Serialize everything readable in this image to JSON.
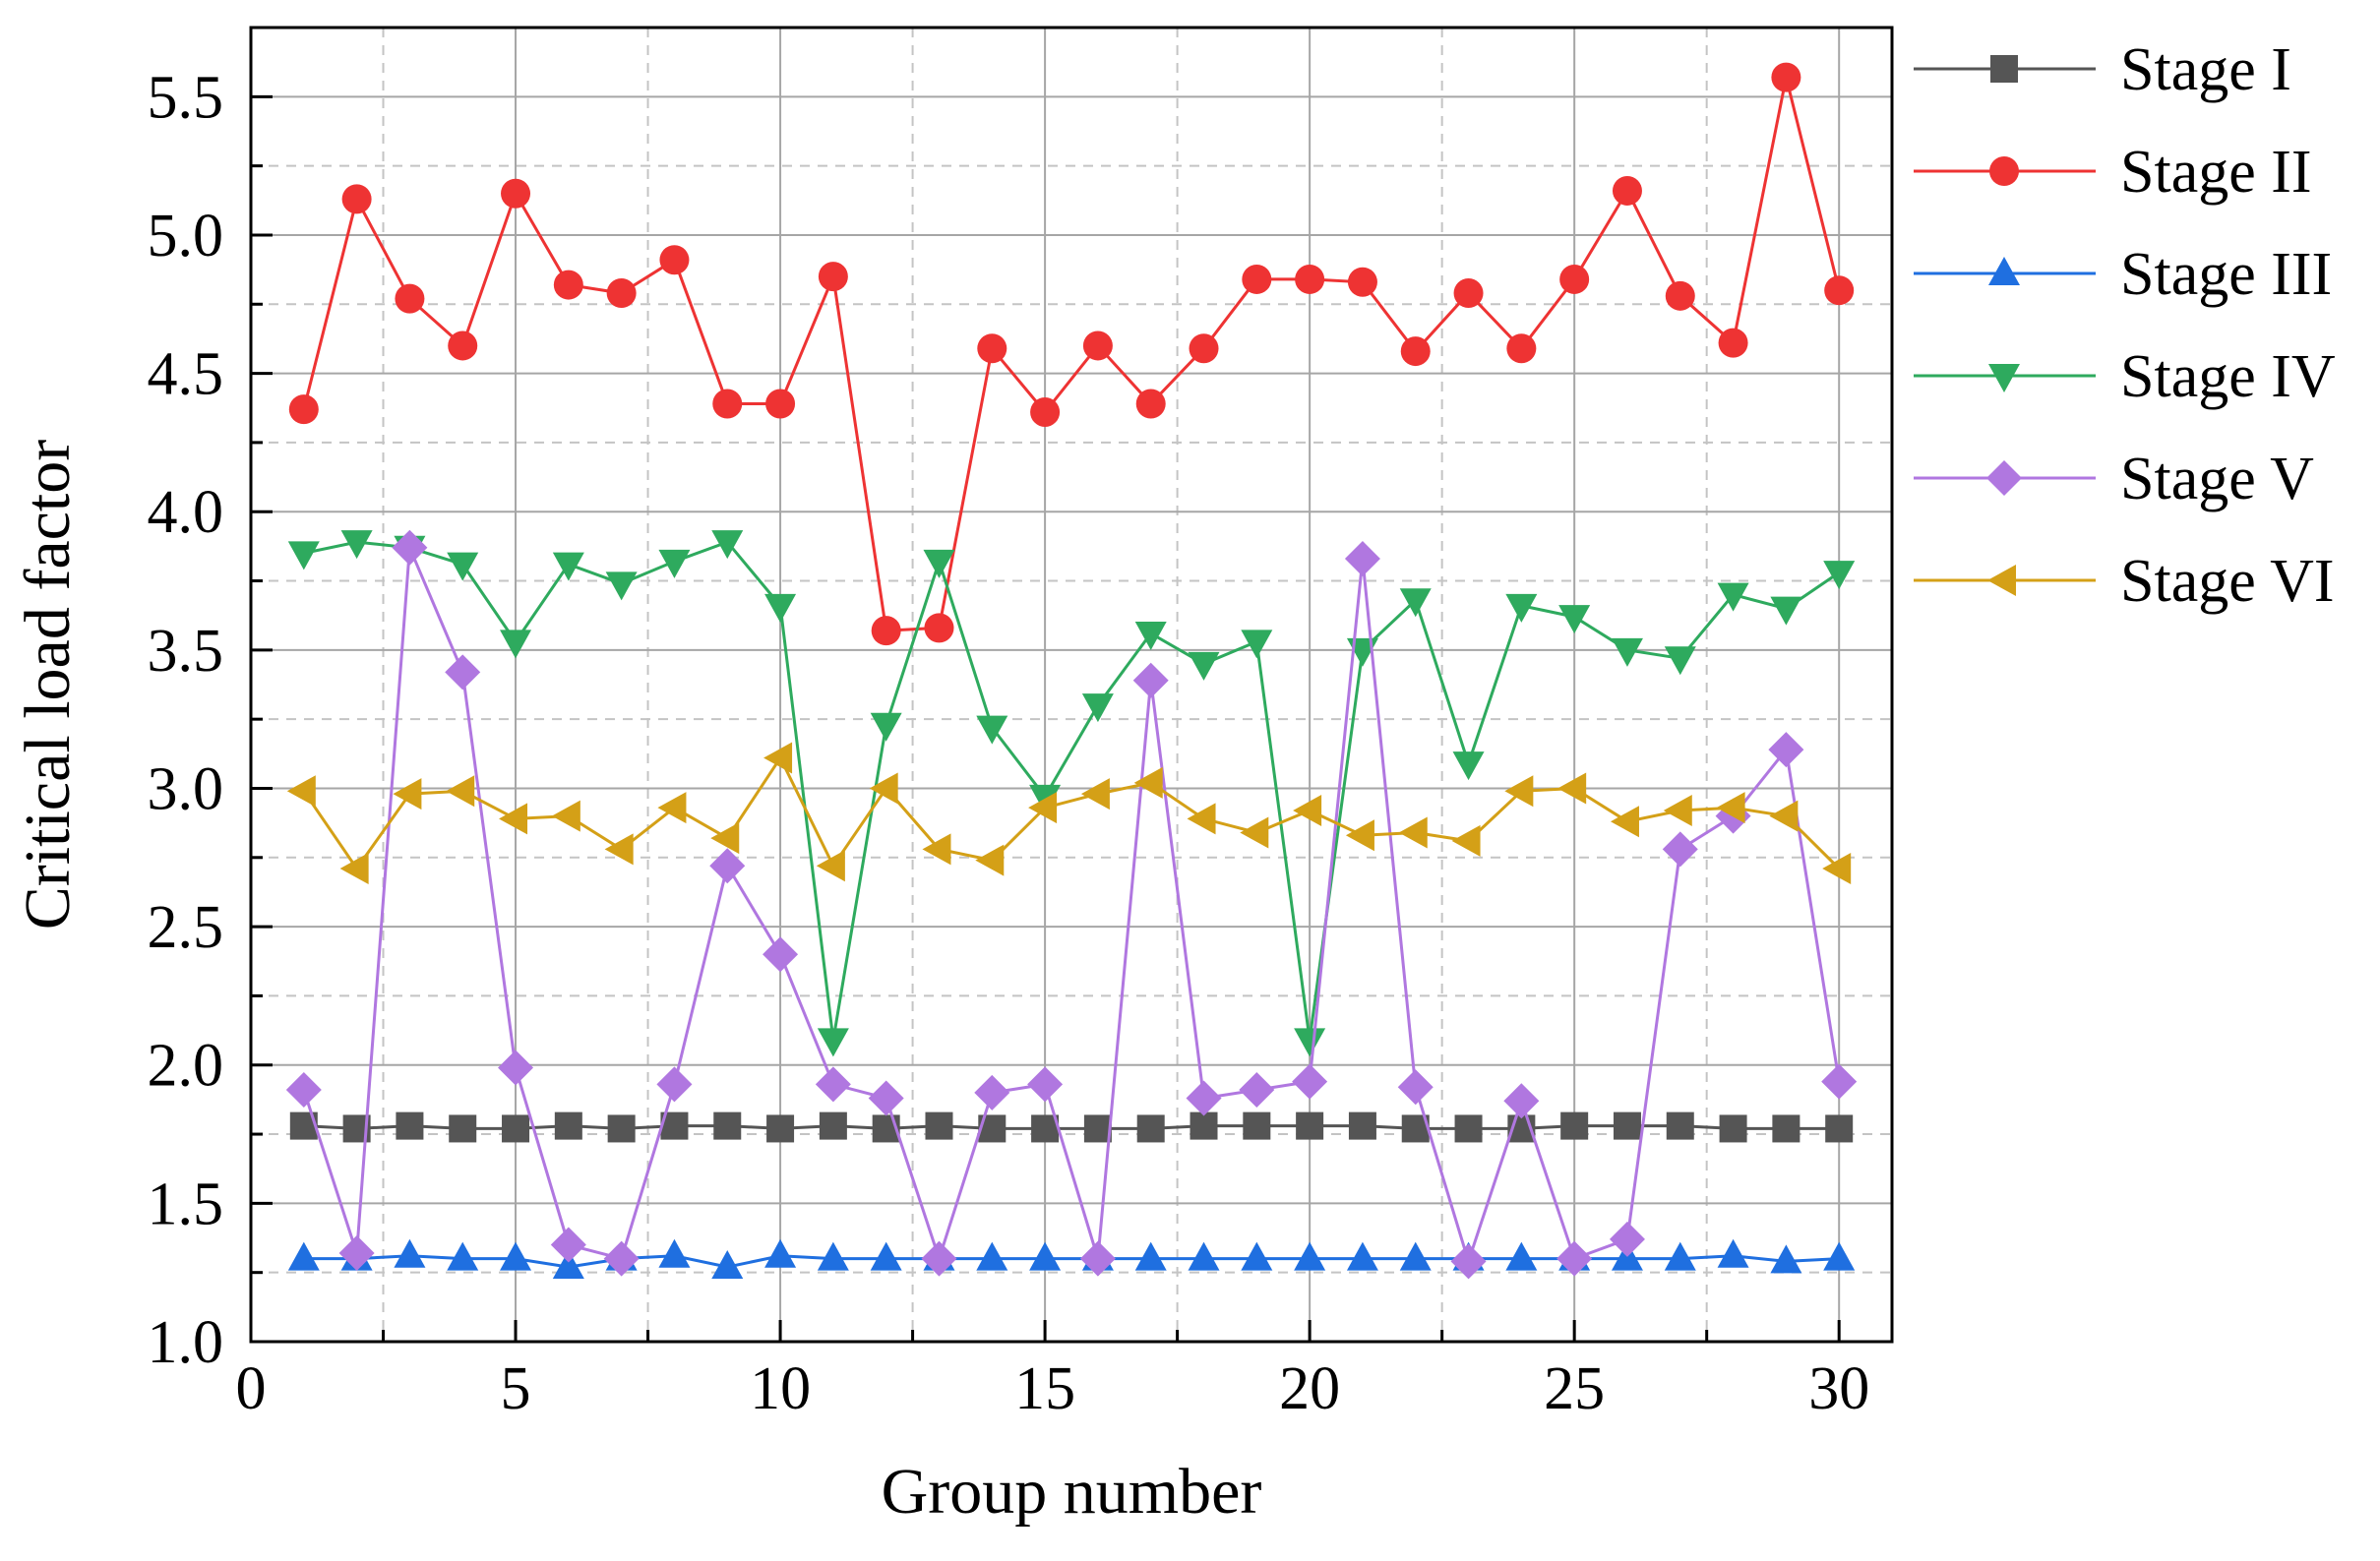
{
  "chart_data": {
    "type": "line",
    "xlabel": "Group number",
    "ylabel": "Critical load factor",
    "xlim": [
      0,
      31
    ],
    "ylim": [
      1.0,
      5.75
    ],
    "xticks": [
      0,
      5,
      10,
      15,
      20,
      25,
      30
    ],
    "yticks": [
      1.0,
      1.5,
      2.0,
      2.5,
      3.0,
      3.5,
      4.0,
      4.5,
      5.0,
      5.5
    ],
    "xtick_labels": [
      "0",
      "5",
      "10",
      "15",
      "20",
      "25",
      "30"
    ],
    "ytick_labels": [
      "1.0",
      "1.5",
      "2.0",
      "2.5",
      "3.0",
      "3.5",
      "4.0",
      "4.5",
      "5.0",
      "5.5"
    ],
    "grid": true,
    "legend_position": "right",
    "x": [
      1,
      2,
      3,
      4,
      5,
      6,
      7,
      8,
      9,
      10,
      11,
      12,
      13,
      14,
      15,
      16,
      17,
      18,
      19,
      20,
      21,
      22,
      23,
      24,
      25,
      26,
      27,
      28,
      29,
      30
    ],
    "series": [
      {
        "name": "Stage I",
        "marker": "square",
        "color": "#555555",
        "values": [
          1.78,
          1.77,
          1.78,
          1.77,
          1.77,
          1.78,
          1.77,
          1.78,
          1.78,
          1.77,
          1.78,
          1.77,
          1.78,
          1.77,
          1.77,
          1.77,
          1.77,
          1.78,
          1.78,
          1.78,
          1.78,
          1.77,
          1.77,
          1.77,
          1.78,
          1.78,
          1.78,
          1.77,
          1.77,
          1.77
        ]
      },
      {
        "name": "Stage II",
        "marker": "circle",
        "color": "#ee3333",
        "values": [
          4.37,
          5.13,
          4.77,
          4.6,
          5.15,
          4.82,
          4.79,
          4.91,
          4.39,
          4.39,
          4.85,
          3.57,
          3.58,
          4.59,
          4.36,
          4.6,
          4.39,
          4.59,
          4.84,
          4.84,
          4.83,
          4.58,
          4.79,
          4.59,
          4.84,
          5.16,
          4.78,
          4.61,
          5.57,
          4.8
        ]
      },
      {
        "name": "Stage III",
        "marker": "triangle-up",
        "color": "#1f6fe0",
        "values": [
          1.3,
          1.3,
          1.31,
          1.3,
          1.3,
          1.27,
          1.3,
          1.31,
          1.27,
          1.31,
          1.3,
          1.3,
          1.3,
          1.3,
          1.3,
          1.3,
          1.3,
          1.3,
          1.3,
          1.3,
          1.3,
          1.3,
          1.3,
          1.3,
          1.3,
          1.3,
          1.3,
          1.31,
          1.29,
          1.3
        ]
      },
      {
        "name": "Stage IV",
        "marker": "triangle-down",
        "color": "#2eaa5e",
        "values": [
          3.85,
          3.89,
          3.87,
          3.81,
          3.53,
          3.81,
          3.74,
          3.82,
          3.89,
          3.66,
          2.09,
          3.23,
          3.82,
          3.22,
          2.97,
          3.3,
          3.56,
          3.45,
          3.53,
          2.09,
          3.5,
          3.68,
          3.09,
          3.66,
          3.62,
          3.5,
          3.47,
          3.7,
          3.65,
          3.78
        ]
      },
      {
        "name": "Stage V",
        "marker": "diamond",
        "color": "#b077e0",
        "values": [
          1.91,
          1.32,
          3.87,
          3.42,
          1.99,
          1.35,
          1.3,
          1.93,
          2.72,
          2.4,
          1.93,
          1.88,
          1.3,
          1.9,
          1.93,
          1.3,
          3.39,
          1.88,
          1.91,
          1.94,
          3.83,
          1.92,
          1.29,
          1.87,
          1.3,
          1.37,
          2.78,
          2.9,
          3.14,
          1.94
        ]
      },
      {
        "name": "Stage VI",
        "marker": "triangle-left",
        "color": "#d4a017",
        "values": [
          2.99,
          2.71,
          2.98,
          2.99,
          2.89,
          2.9,
          2.78,
          2.93,
          2.82,
          3.11,
          2.72,
          3.0,
          2.78,
          2.74,
          2.93,
          2.98,
          3.02,
          2.89,
          2.84,
          2.92,
          2.83,
          2.84,
          2.81,
          2.99,
          3.0,
          2.88,
          2.92,
          2.93,
          2.9,
          2.71
        ]
      }
    ]
  }
}
